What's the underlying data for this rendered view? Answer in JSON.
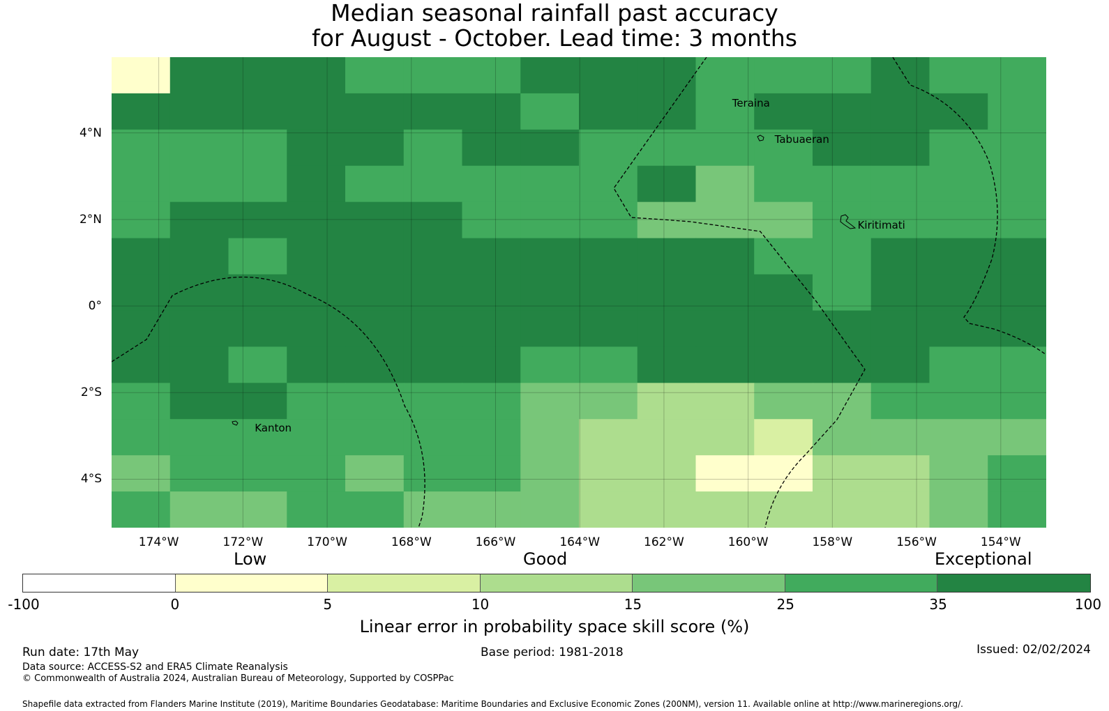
{
  "title_line1": "Median seasonal rainfall past accuracy",
  "title_line2": "for August - October. Lead time: 3 months",
  "map": {
    "lon_range": [
      -175.12,
      -152.92
    ],
    "lat_range": [
      -5.12,
      5.75
    ],
    "cell_size_deg": 0.84,
    "lat_labels": [
      {
        "value": 4,
        "text": "4°N"
      },
      {
        "value": 2,
        "text": "2°N"
      },
      {
        "value": 0,
        "text": "0°"
      },
      {
        "value": -2,
        "text": "2°S"
      },
      {
        "value": -4,
        "text": "4°S"
      }
    ],
    "lon_labels": [
      {
        "value": -174,
        "text": "174°W"
      },
      {
        "value": -172,
        "text": "172°W"
      },
      {
        "value": -170,
        "text": "170°W"
      },
      {
        "value": -168,
        "text": "168°W"
      },
      {
        "value": -166,
        "text": "166°W"
      },
      {
        "value": -164,
        "text": "164°W"
      },
      {
        "value": -162,
        "text": "162°W"
      },
      {
        "value": -160,
        "text": "160°W"
      },
      {
        "value": -158,
        "text": "158°W"
      },
      {
        "value": -156,
        "text": "156°W"
      },
      {
        "value": -154,
        "text": "154°W"
      }
    ],
    "places": [
      {
        "name": "Teraina",
        "lon": -160.38,
        "lat": 4.68
      },
      {
        "name": "Tabuaeran",
        "lon": -159.37,
        "lat": 3.85
      },
      {
        "name": "Kiritimati",
        "lon": -157.4,
        "lat": 1.87
      },
      {
        "name": "Kanton",
        "lon": -171.72,
        "lat": -2.81
      }
    ],
    "grid": [
      "1666555666555655",
      "6666666566566665",
      "5556656655556655",
      "5556555556455555",
      "5666665554445555",
      "6656666666655666",
      "6666666666665666",
      "6666666666666666",
      "6656666556666655",
      "5665555443344555",
      "5555555433324444",
      "4555455433113345",
      "5445544433333345"
    ]
  },
  "legend": {
    "category_low": "Low",
    "category_good": "Good",
    "category_exceptional": "Exceptional",
    "ticks": [
      "-100",
      "0",
      "5",
      "10",
      "15",
      "25",
      "35",
      "100"
    ],
    "colors": [
      "#ffffff",
      "#ffffcc",
      "#d9f0a3",
      "#addd8e",
      "#78c679",
      "#41ab5d",
      "#238443"
    ],
    "title": "Linear error in probability space skill score (%)"
  },
  "footer": {
    "run_date": "Run date: 17th May",
    "base_period": "Base period: 1981-2018",
    "issued": "Issued: 02/02/2024",
    "data_source": "Data source: ACCESS-S2 and ERA5 Climate Reanalysis",
    "copyright": "© Commonwealth of Australia 2024, Australian Bureau of Meteorology, Supported by COSPPac",
    "shapefile": "Shapefile data extracted from Flanders Marine Institute (2019), Maritime Boundaries Geodatabase: Maritime Boundaries and Exclusive Economic Zones (200NM), version 11. Available online at http://www.marineregions.org/."
  }
}
